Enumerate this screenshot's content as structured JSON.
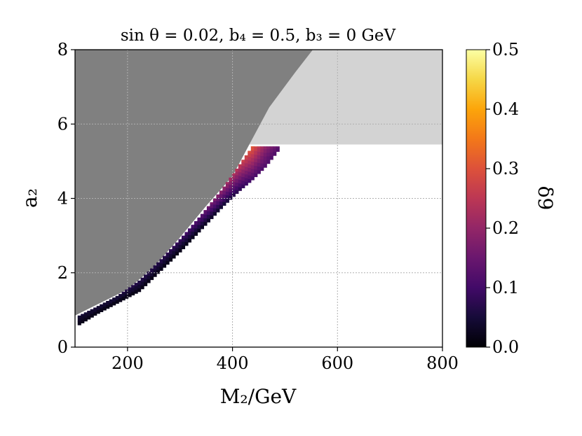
{
  "chart_data": {
    "type": "heatmap",
    "title": "sin θ = 0.02,  b₄ = 0.5,  b₃ = 0  GeV",
    "xlabel": "M₂/GeV",
    "ylabel": "a₂",
    "colorbar_label": "δ9",
    "xlim": [
      100,
      800
    ],
    "ylim": [
      0,
      8
    ],
    "x_ticks": [
      "200",
      "400",
      "600",
      "800"
    ],
    "y_ticks": [
      "0",
      "2",
      "4",
      "6",
      "8"
    ],
    "colorbar_ticks": [
      "0.0",
      "0.1",
      "0.2",
      "0.3",
      "0.4",
      "0.5"
    ],
    "colorbar_range": [
      0,
      0.5
    ],
    "colormap": "inferno",
    "grid": true,
    "regions": {
      "excluded_dark": {
        "color": "#808080",
        "boundary": [
          [
            100,
            0.85
          ],
          [
            150,
            1.2
          ],
          [
            200,
            1.55
          ],
          [
            250,
            2.15
          ],
          [
            300,
            2.95
          ],
          [
            350,
            3.8
          ],
          [
            400,
            4.6
          ],
          [
            432,
            5.45
          ],
          [
            470,
            6.45
          ],
          [
            520,
            7.4
          ],
          [
            553,
            8.0
          ]
        ]
      },
      "excluded_light": {
        "color": "#d3d3d3",
        "a2_min": 5.45
      }
    },
    "valid_band": [
      {
        "M2": 105,
        "a2_upper": 0.85,
        "a2_lower": 0.6,
        "delta_lower": 0.02,
        "delta_upper": 0.05
      },
      {
        "M2": 140,
        "a2_upper": 1.1,
        "a2_lower": 0.9,
        "delta_lower": 0.02,
        "delta_upper": 0.06
      },
      {
        "M2": 180,
        "a2_upper": 1.4,
        "a2_lower": 1.2,
        "delta_lower": 0.02,
        "delta_upper": 0.07
      },
      {
        "M2": 220,
        "a2_upper": 1.8,
        "a2_lower": 1.5,
        "delta_lower": 0.02,
        "delta_upper": 0.08
      },
      {
        "M2": 260,
        "a2_upper": 2.35,
        "a2_lower": 2.05,
        "delta_lower": 0.02,
        "delta_upper": 0.08
      },
      {
        "M2": 300,
        "a2_upper": 2.95,
        "a2_lower": 2.6,
        "delta_lower": 0.02,
        "delta_upper": 0.1
      },
      {
        "M2": 340,
        "a2_upper": 3.6,
        "a2_lower": 3.2,
        "delta_lower": 0.03,
        "delta_upper": 0.15
      },
      {
        "M2": 380,
        "a2_upper": 4.3,
        "a2_lower": 3.8,
        "delta_lower": 0.05,
        "delta_upper": 0.22
      },
      {
        "M2": 410,
        "a2_upper": 4.9,
        "a2_lower": 4.2,
        "delta_lower": 0.08,
        "delta_upper": 0.27
      },
      {
        "M2": 435,
        "a2_upper": 5.4,
        "a2_lower": 4.5,
        "delta_lower": 0.11,
        "delta_upper": 0.32
      },
      {
        "M2": 460,
        "a2_upper": 5.4,
        "a2_lower": 4.85,
        "delta_lower": 0.12,
        "delta_upper": 0.2
      },
      {
        "M2": 485,
        "a2_upper": 5.4,
        "a2_lower": 5.3,
        "delta_lower": 0.12,
        "delta_upper": 0.14
      }
    ]
  }
}
